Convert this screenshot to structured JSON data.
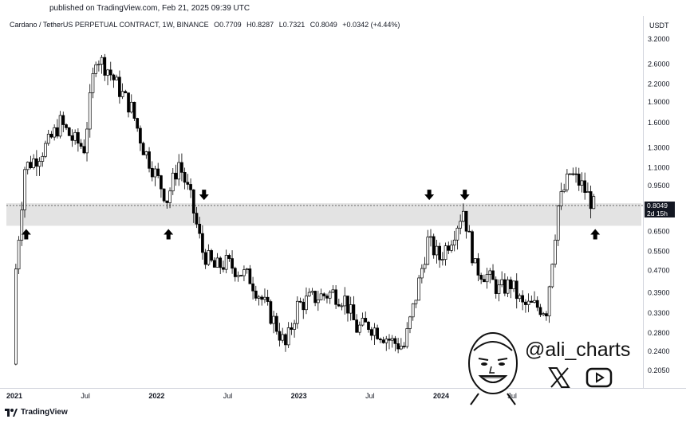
{
  "header": {
    "published": "published on TradingView.com, Feb 21, 2025 09:39 UTC",
    "symbol": "Cardano / TetherUS PERPETUAL CONTRACT, 1W, BINANCE",
    "open": "O0.7709",
    "high": "H0.8287",
    "low": "L0.7321",
    "close": "C0.8049",
    "change": "+0.0342 (+4.44%)",
    "currency": "USDT"
  },
  "price_tag": {
    "price": "0.8049",
    "countdown": "2d 15h"
  },
  "watermark": {
    "handle": "@ali_charts",
    "x_icon": "x-logo-icon",
    "youtube_icon": "youtube-icon"
  },
  "footer": {
    "brand": "TradingView"
  },
  "colors": {
    "candle": "#000000",
    "zone": "#d9d9d9",
    "axis_text": "#131722"
  },
  "chart_data": {
    "type": "candlestick",
    "y_scale": "log",
    "ylim": [
      0.18,
      3.5
    ],
    "y_ticks": [
      "3.2000",
      "2.6000",
      "2.2000",
      "1.9000",
      "1.6000",
      "1.3000",
      "1.1000",
      "0.9500",
      "0.8049",
      "0.6500",
      "0.5500",
      "0.4700",
      "0.3900",
      "0.3300",
      "0.2800",
      "0.2400",
      "0.2050"
    ],
    "y_tick_values": [
      3.2,
      2.6,
      2.2,
      1.9,
      1.6,
      1.3,
      1.1,
      0.95,
      0.8049,
      0.65,
      0.55,
      0.47,
      0.39,
      0.33,
      0.28,
      0.24,
      0.205
    ],
    "x_ticks": [
      "2021",
      "Jul",
      "2022",
      "Jul",
      "2023",
      "Jul",
      "2024",
      "Jul"
    ],
    "x_tick_dates": [
      "2021-01",
      "2021-07",
      "2022-01",
      "2022-07",
      "2023-01",
      "2023-07",
      "2024-01",
      "2024-07"
    ],
    "support_zone": [
      0.68,
      0.82
    ],
    "arrows": [
      {
        "date": "2021-02",
        "direction": "up"
      },
      {
        "date": "2022-02",
        "direction": "up"
      },
      {
        "date": "2022-05",
        "direction": "down"
      },
      {
        "date": "2023-12",
        "direction": "down"
      },
      {
        "date": "2024-03",
        "direction": "down"
      },
      {
        "date": "2025-02",
        "direction": "up"
      }
    ],
    "close_series_monthly": [
      {
        "date": "2021-01",
        "close": 0.36
      },
      {
        "date": "2021-02",
        "close": 1.1
      },
      {
        "date": "2021-03",
        "close": 1.2
      },
      {
        "date": "2021-04",
        "close": 1.35
      },
      {
        "date": "2021-05",
        "close": 1.6
      },
      {
        "date": "2021-06",
        "close": 1.4
      },
      {
        "date": "2021-07",
        "close": 1.3
      },
      {
        "date": "2021-08",
        "close": 2.8
      },
      {
        "date": "2021-09",
        "close": 2.5
      },
      {
        "date": "2021-10",
        "close": 2.1
      },
      {
        "date": "2021-11",
        "close": 1.8
      },
      {
        "date": "2021-12",
        "close": 1.3
      },
      {
        "date": "2022-01",
        "close": 1.05
      },
      {
        "date": "2022-02",
        "close": 0.85
      },
      {
        "date": "2022-03",
        "close": 1.15
      },
      {
        "date": "2022-04",
        "close": 0.85
      },
      {
        "date": "2022-05",
        "close": 0.55
      },
      {
        "date": "2022-06",
        "close": 0.48
      },
      {
        "date": "2022-07",
        "close": 0.5
      },
      {
        "date": "2022-08",
        "close": 0.47
      },
      {
        "date": "2022-09",
        "close": 0.44
      },
      {
        "date": "2022-10",
        "close": 0.37
      },
      {
        "date": "2022-11",
        "close": 0.31
      },
      {
        "date": "2022-12",
        "close": 0.25
      },
      {
        "date": "2023-01",
        "close": 0.35
      },
      {
        "date": "2023-02",
        "close": 0.37
      },
      {
        "date": "2023-03",
        "close": 0.38
      },
      {
        "date": "2023-04",
        "close": 0.39
      },
      {
        "date": "2023-05",
        "close": 0.37
      },
      {
        "date": "2023-06",
        "close": 0.29
      },
      {
        "date": "2023-07",
        "close": 0.3
      },
      {
        "date": "2023-08",
        "close": 0.28
      },
      {
        "date": "2023-09",
        "close": 0.26
      },
      {
        "date": "2023-10",
        "close": 0.25
      },
      {
        "date": "2023-11",
        "close": 0.38
      },
      {
        "date": "2023-12",
        "close": 0.6
      },
      {
        "date": "2024-01",
        "close": 0.52
      },
      {
        "date": "2024-02",
        "close": 0.62
      },
      {
        "date": "2024-03",
        "close": 0.78
      },
      {
        "date": "2024-04",
        "close": 0.48
      },
      {
        "date": "2024-05",
        "close": 0.45
      },
      {
        "date": "2024-06",
        "close": 0.4
      },
      {
        "date": "2024-07",
        "close": 0.42
      },
      {
        "date": "2024-08",
        "close": 0.35
      },
      {
        "date": "2024-09",
        "close": 0.35
      },
      {
        "date": "2024-10",
        "close": 0.34
      },
      {
        "date": "2024-11",
        "close": 0.8
      },
      {
        "date": "2024-12",
        "close": 1.05
      },
      {
        "date": "2025-01",
        "close": 0.95
      },
      {
        "date": "2025-02",
        "close": 0.8049
      }
    ]
  }
}
